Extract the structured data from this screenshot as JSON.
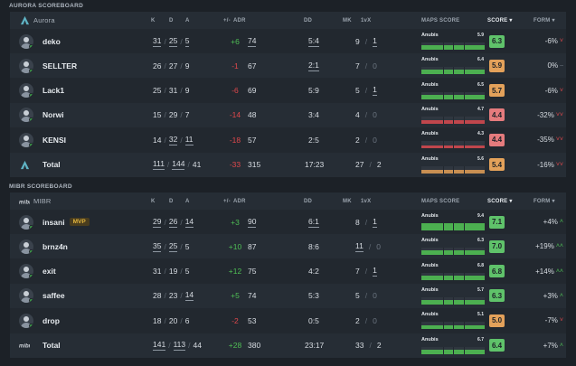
{
  "colors": {
    "green_score": "#5fc26a",
    "orange_score": "#e3a15a",
    "red_score": "#e57b7d",
    "bar_green": "#4caf50",
    "bar_red": "#c0464c",
    "bar_orange": "#c88f52"
  },
  "headers": {
    "k": "K",
    "d": "D",
    "a": "A",
    "pm": "+/-",
    "adr": "ADR",
    "dd": "DD",
    "mk": "MK",
    "clutch": "1vX",
    "maps": "MAPS SCORE",
    "score": "SCORE",
    "form": "FORM"
  },
  "aurora": {
    "section_title": "AURORA SCOREBOARD",
    "team_name": "Aurora",
    "logo": "aurora-logo-icon",
    "players": [
      {
        "name": "deko",
        "k": "31",
        "d": "25",
        "a": "5",
        "pm": "+6",
        "adr": "74",
        "dd": "5:4",
        "mk": "9",
        "clutch": "1",
        "map": "Anubis",
        "map_val": "5.9",
        "map_fill": 0.59,
        "map_color": "#4caf50",
        "score": "6.3",
        "score_color": "#5fc26a",
        "form": "-6%",
        "form_arrow": "˅",
        "form_dir": "neg",
        "k_u": true,
        "d_u": true,
        "a_u": true,
        "adr_u": true,
        "dd_u": true,
        "mk_u": false,
        "c_u": true,
        "mvp": ""
      },
      {
        "name": "SELLTER",
        "k": "26",
        "d": "27",
        "a": "9",
        "pm": "-1",
        "adr": "67",
        "dd": "2:1",
        "mk": "7",
        "clutch": "0",
        "map": "Anubis",
        "map_val": "6.4",
        "map_fill": 0.64,
        "map_color": "#4caf50",
        "score": "5.9",
        "score_color": "#e3a15a",
        "form": "0%",
        "form_arrow": "–",
        "form_dir": "flat",
        "k_u": false,
        "d_u": false,
        "a_u": false,
        "adr_u": false,
        "dd_u": true,
        "mk_u": false,
        "c_u": false,
        "mvp": ""
      },
      {
        "name": "Lack1",
        "k": "25",
        "d": "31",
        "a": "9",
        "pm": "-6",
        "adr": "69",
        "dd": "5:9",
        "mk": "5",
        "clutch": "1",
        "map": "Anubis",
        "map_val": "6.5",
        "map_fill": 0.65,
        "map_color": "#4caf50",
        "score": "5.7",
        "score_color": "#e3a15a",
        "form": "-6%",
        "form_arrow": "˅",
        "form_dir": "neg",
        "k_u": false,
        "d_u": false,
        "a_u": false,
        "adr_u": false,
        "dd_u": false,
        "mk_u": false,
        "c_u": true,
        "mvp": ""
      },
      {
        "name": "Norwi",
        "k": "15",
        "d": "29",
        "a": "7",
        "pm": "-14",
        "adr": "48",
        "dd": "3:4",
        "mk": "4",
        "clutch": "0",
        "map": "Anubis",
        "map_val": "4.7",
        "map_fill": 0.47,
        "map_color": "#c0464c",
        "score": "4.4",
        "score_color": "#e57b7d",
        "form": "-32%",
        "form_arrow": "˅˅",
        "form_dir": "neg",
        "k_u": false,
        "d_u": false,
        "a_u": false,
        "adr_u": false,
        "dd_u": false,
        "mk_u": false,
        "c_u": false,
        "mvp": ""
      },
      {
        "name": "KENSI",
        "k": "14",
        "d": "32",
        "a": "11",
        "pm": "-18",
        "adr": "57",
        "dd": "2:5",
        "mk": "2",
        "clutch": "0",
        "map": "Anubis",
        "map_val": "4.3",
        "map_fill": 0.43,
        "map_color": "#c0464c",
        "score": "4.4",
        "score_color": "#e57b7d",
        "form": "-35%",
        "form_arrow": "˅˅",
        "form_dir": "neg",
        "k_u": false,
        "d_u": true,
        "a_u": true,
        "adr_u": false,
        "dd_u": false,
        "mk_u": false,
        "c_u": false,
        "mvp": ""
      }
    ],
    "total": {
      "name": "Total",
      "k": "111",
      "d": "144",
      "a": "41",
      "pm": "-33",
      "adr": "315",
      "dd": "17:23",
      "mk": "27",
      "clutch": "2",
      "map": "Anubis",
      "map_val": "5.6",
      "map_fill": 0.56,
      "map_color": "#c88f52",
      "score": "5.4",
      "score_color": "#e3a15a",
      "form": "-16%",
      "form_arrow": "˅˅",
      "form_dir": "neg"
    }
  },
  "mibr": {
    "section_title": "MIBR SCOREBOARD",
    "team_name": "MIBR",
    "logo": "mibr-logo-icon",
    "players": [
      {
        "name": "insani",
        "k": "29",
        "d": "26",
        "a": "14",
        "pm": "+3",
        "adr": "90",
        "dd": "6:1",
        "mk": "8",
        "clutch": "1",
        "map": "Anubis",
        "map_val": "9.4",
        "map_fill": 0.94,
        "map_color": "#4caf50",
        "score": "7.1",
        "score_color": "#5fc26a",
        "form": "+4%",
        "form_arrow": "˄",
        "form_dir": "pos",
        "k_u": true,
        "d_u": true,
        "a_u": true,
        "adr_u": true,
        "dd_u": true,
        "mk_u": false,
        "c_u": true,
        "mvp": "MVP"
      },
      {
        "name": "brnz4n",
        "k": "35",
        "d": "25",
        "a": "5",
        "pm": "+10",
        "adr": "87",
        "dd": "8:6",
        "mk": "11",
        "clutch": "0",
        "map": "Anubis",
        "map_val": "6.3",
        "map_fill": 0.63,
        "map_color": "#4caf50",
        "score": "7.0",
        "score_color": "#5fc26a",
        "form": "+19%",
        "form_arrow": "˄˄",
        "form_dir": "pos",
        "k_u": true,
        "d_u": true,
        "a_u": false,
        "adr_u": false,
        "dd_u": false,
        "mk_u": true,
        "c_u": false,
        "mvp": ""
      },
      {
        "name": "exit",
        "k": "31",
        "d": "19",
        "a": "5",
        "pm": "+12",
        "adr": "75",
        "dd": "4:2",
        "mk": "7",
        "clutch": "1",
        "map": "Anubis",
        "map_val": "6.8",
        "map_fill": 0.68,
        "map_color": "#4caf50",
        "score": "6.8",
        "score_color": "#5fc26a",
        "form": "+14%",
        "form_arrow": "˄˄",
        "form_dir": "pos",
        "k_u": false,
        "d_u": false,
        "a_u": false,
        "adr_u": false,
        "dd_u": false,
        "mk_u": false,
        "c_u": true,
        "mvp": ""
      },
      {
        "name": "saffee",
        "k": "28",
        "d": "23",
        "a": "14",
        "pm": "+5",
        "adr": "74",
        "dd": "5:3",
        "mk": "5",
        "clutch": "0",
        "map": "Anubis",
        "map_val": "5.7",
        "map_fill": 0.57,
        "map_color": "#4caf50",
        "score": "6.3",
        "score_color": "#5fc26a",
        "form": "+3%",
        "form_arrow": "˄",
        "form_dir": "pos",
        "k_u": false,
        "d_u": false,
        "a_u": true,
        "adr_u": false,
        "dd_u": false,
        "mk_u": false,
        "c_u": false,
        "mvp": ""
      },
      {
        "name": "drop",
        "k": "18",
        "d": "20",
        "a": "6",
        "pm": "-2",
        "adr": "53",
        "dd": "0:5",
        "mk": "2",
        "clutch": "0",
        "map": "Anubis",
        "map_val": "5.1",
        "map_fill": 0.51,
        "map_color": "#4caf50",
        "score": "5.0",
        "score_color": "#e3a15a",
        "form": "-7%",
        "form_arrow": "˅",
        "form_dir": "neg",
        "k_u": false,
        "d_u": false,
        "a_u": false,
        "adr_u": false,
        "dd_u": false,
        "mk_u": false,
        "c_u": false,
        "mvp": ""
      }
    ],
    "total": {
      "name": "Total",
      "k": "141",
      "d": "113",
      "a": "44",
      "pm": "+28",
      "adr": "380",
      "dd": "23:17",
      "mk": "33",
      "clutch": "2",
      "map": "Anubis",
      "map_val": "6.7",
      "map_fill": 0.67,
      "map_color": "#4caf50",
      "score": "6.4",
      "score_color": "#5fc26a",
      "form": "+7%",
      "form_arrow": "˄",
      "form_dir": "pos"
    }
  }
}
